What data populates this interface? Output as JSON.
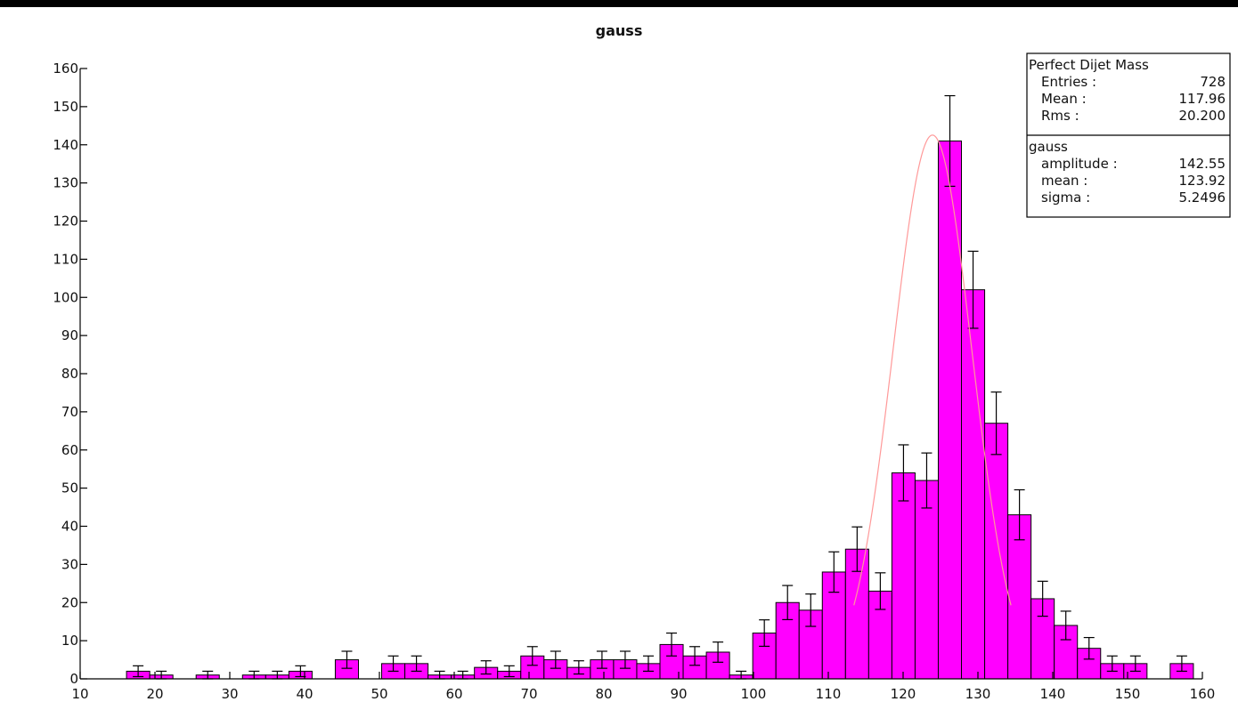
{
  "chart_data": {
    "type": "bar",
    "title": "gauss",
    "xlabel": "",
    "ylabel": "",
    "xlim": [
      10,
      160
    ],
    "ylim": [
      0,
      160
    ],
    "xticks": [
      10,
      20,
      30,
      40,
      50,
      60,
      70,
      80,
      90,
      100,
      110,
      120,
      130,
      140,
      150,
      160
    ],
    "yticks": [
      0,
      10,
      20,
      30,
      40,
      50,
      60,
      70,
      80,
      90,
      100,
      110,
      120,
      130,
      140,
      150,
      160
    ],
    "grid": false,
    "bar_color": "#ff00ff",
    "fit_color": "#ff9999",
    "bin_edges_start": 10,
    "bin_width": 3.1,
    "bin_values": [
      0,
      0,
      2,
      1,
      0,
      1,
      0,
      1,
      1,
      2,
      0,
      5,
      0,
      4,
      4,
      1,
      1,
      3,
      2,
      6,
      5,
      3,
      5,
      5,
      4,
      9,
      6,
      7,
      1,
      12,
      20,
      18,
      28,
      34,
      23,
      54,
      52,
      141,
      102,
      67,
      43,
      21,
      14,
      8,
      4,
      4,
      0,
      4
    ],
    "series": [
      {
        "name": "Perfect Dijet Mass",
        "stats": {
          "entries_label": "Entries :",
          "entries": "728",
          "mean_label": "Mean :",
          "mean": "117.96",
          "rms_label": "Rms :",
          "rms": "20.200"
        }
      },
      {
        "name": "gauss",
        "fit": {
          "amplitude_label": "amplitude :",
          "amplitude": "142.55",
          "mean_label": "mean :",
          "mean": "123.92",
          "sigma_label": "sigma :",
          "sigma": "5.2496"
        }
      }
    ]
  }
}
